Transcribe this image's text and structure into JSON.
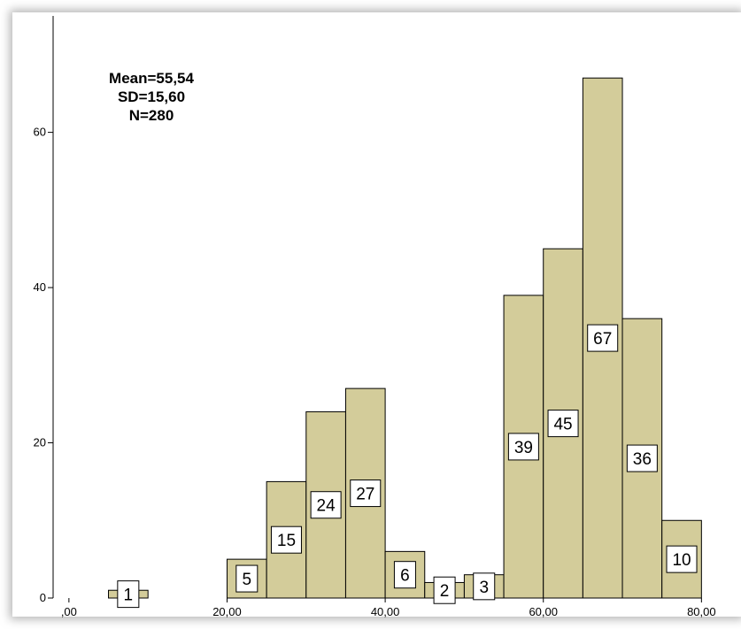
{
  "chart_data": {
    "type": "bar",
    "chart_subtype": "histogram",
    "bin_width": 5,
    "bins": [
      {
        "start": 0,
        "end": 5,
        "count": 0
      },
      {
        "start": 5,
        "end": 10,
        "count": 1
      },
      {
        "start": 10,
        "end": 15,
        "count": 0
      },
      {
        "start": 15,
        "end": 20,
        "count": 0
      },
      {
        "start": 20,
        "end": 25,
        "count": 5
      },
      {
        "start": 25,
        "end": 30,
        "count": 15
      },
      {
        "start": 30,
        "end": 35,
        "count": 24
      },
      {
        "start": 35,
        "end": 40,
        "count": 27
      },
      {
        "start": 40,
        "end": 45,
        "count": 6
      },
      {
        "start": 45,
        "end": 50,
        "count": 2
      },
      {
        "start": 50,
        "end": 55,
        "count": 3
      },
      {
        "start": 55,
        "end": 60,
        "count": 39
      },
      {
        "start": 60,
        "end": 65,
        "count": 45
      },
      {
        "start": 65,
        "end": 70,
        "count": 67
      },
      {
        "start": 70,
        "end": 75,
        "count": 36
      },
      {
        "start": 75,
        "end": 80,
        "count": 10
      }
    ],
    "x_ticks": [
      ",00",
      "20,00",
      "40,00",
      "60,00",
      "80,00"
    ],
    "x_tick_values": [
      0,
      20,
      40,
      60,
      80
    ],
    "y_ticks": [
      "0",
      "20",
      "40",
      "60"
    ],
    "y_tick_values": [
      0,
      20,
      40,
      60
    ],
    "xlim": [
      -2,
      85
    ],
    "ylim": [
      0,
      75
    ],
    "title": "",
    "xlabel": "",
    "ylabel": "",
    "grid": false,
    "legend": "none",
    "bar_color": "#d3cc9a",
    "bar_edge_color": "#000000",
    "stats": [
      "Mean=55,54",
      "SD=15,60",
      "N=280"
    ]
  }
}
